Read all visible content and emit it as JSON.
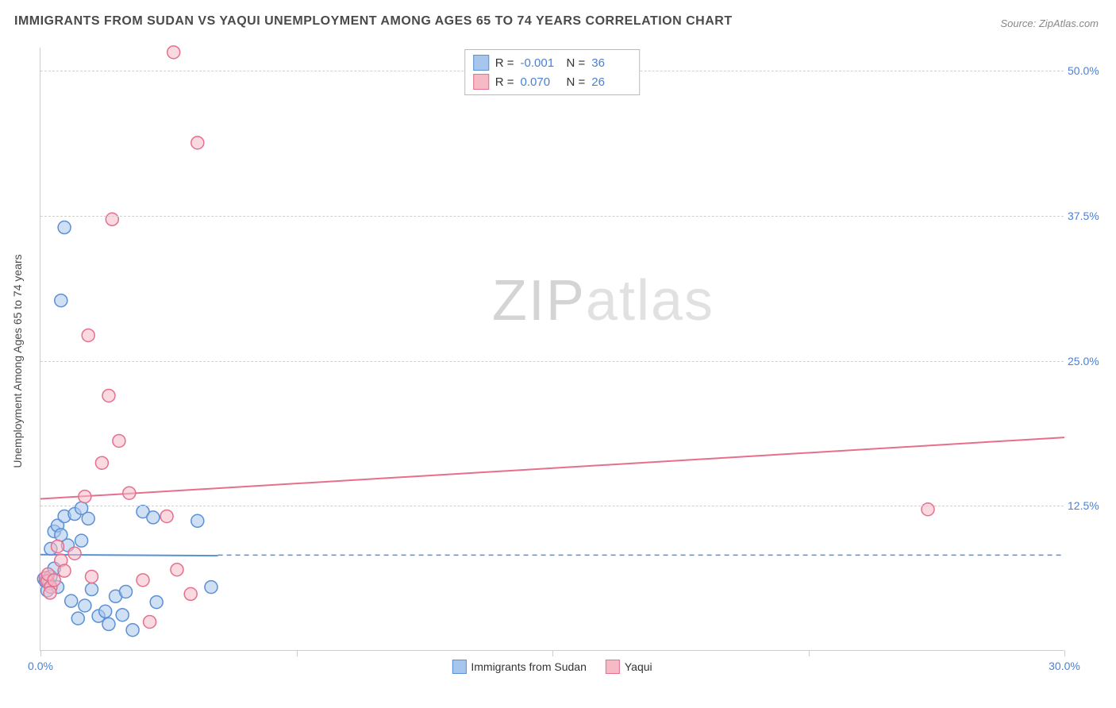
{
  "title": "IMMIGRANTS FROM SUDAN VS YAQUI UNEMPLOYMENT AMONG AGES 65 TO 74 YEARS CORRELATION CHART",
  "source_label": "Source: ZipAtlas.com",
  "y_axis_label": "Unemployment Among Ages 65 to 74 years",
  "watermark_a": "ZIP",
  "watermark_b": "atlas",
  "chart": {
    "type": "scatter",
    "xlim": [
      0,
      30
    ],
    "ylim": [
      0,
      52
    ],
    "x_ticks": [
      0,
      7.5,
      15,
      22.5,
      30
    ],
    "x_tick_labels": [
      "0.0%",
      "",
      "",
      "",
      "30.0%"
    ],
    "y_ticks": [
      12.5,
      25.0,
      37.5,
      50.0
    ],
    "y_tick_labels": [
      "12.5%",
      "25.0%",
      "37.5%",
      "50.0%"
    ],
    "grid_color": "#d0d0d0",
    "background_color": "#ffffff",
    "marker_radius": 8,
    "marker_stroke_width": 1.5,
    "line_width": 2,
    "mean_line_dash": "6,5",
    "series": [
      {
        "name": "Immigrants from Sudan",
        "fill": "#a7c6ed",
        "stroke": "#5b8fd6",
        "fill_opacity": 0.55,
        "R_label": "R =",
        "R_value": "-0.001",
        "N_label": "N =",
        "N_value": "36",
        "trend": {
          "x1": 0,
          "y1": 8.3,
          "x2": 5.2,
          "y2": 8.2
        },
        "mean_line": {
          "y": 8.25,
          "x_from": 5.2,
          "x_to": 30
        },
        "points": [
          [
            0.1,
            6.2
          ],
          [
            0.15,
            6.0
          ],
          [
            0.2,
            6.1
          ],
          [
            0.25,
            5.8
          ],
          [
            0.3,
            6.4
          ],
          [
            0.2,
            5.2
          ],
          [
            0.4,
            10.3
          ],
          [
            0.5,
            10.8
          ],
          [
            0.7,
            11.6
          ],
          [
            0.6,
            10.0
          ],
          [
            0.8,
            9.1
          ],
          [
            1.0,
            11.8
          ],
          [
            1.2,
            12.3
          ],
          [
            1.4,
            11.4
          ],
          [
            1.2,
            9.5
          ],
          [
            1.5,
            5.3
          ],
          [
            1.7,
            3.0
          ],
          [
            1.9,
            3.4
          ],
          [
            2.0,
            2.3
          ],
          [
            2.2,
            4.7
          ],
          [
            2.5,
            5.1
          ],
          [
            0.7,
            36.5
          ],
          [
            0.6,
            30.2
          ],
          [
            3.0,
            12.0
          ],
          [
            3.3,
            11.5
          ],
          [
            3.4,
            4.2
          ],
          [
            0.3,
            8.8
          ],
          [
            0.4,
            7.1
          ],
          [
            0.9,
            4.3
          ],
          [
            1.1,
            2.8
          ],
          [
            1.3,
            3.9
          ],
          [
            2.4,
            3.1
          ],
          [
            2.7,
            1.8
          ],
          [
            5.0,
            5.5
          ],
          [
            4.6,
            11.2
          ],
          [
            0.5,
            5.5
          ]
        ]
      },
      {
        "name": "Yaqui",
        "fill": "#f6b9c6",
        "stroke": "#e56f8c",
        "fill_opacity": 0.55,
        "R_label": "R =",
        "R_value": "0.070",
        "N_label": "N =",
        "N_value": "26",
        "trend": {
          "x1": 0,
          "y1": 13.1,
          "x2": 30,
          "y2": 18.4
        },
        "mean_line": null,
        "points": [
          [
            0.15,
            6.3
          ],
          [
            0.2,
            6.0
          ],
          [
            0.3,
            5.5
          ],
          [
            0.22,
            6.6
          ],
          [
            0.4,
            6.1
          ],
          [
            0.28,
            5.0
          ],
          [
            0.6,
            7.8
          ],
          [
            0.7,
            6.9
          ],
          [
            1.0,
            8.4
          ],
          [
            1.3,
            13.3
          ],
          [
            1.5,
            6.4
          ],
          [
            2.0,
            22.0
          ],
          [
            1.4,
            27.2
          ],
          [
            1.8,
            16.2
          ],
          [
            2.3,
            18.1
          ],
          [
            2.6,
            13.6
          ],
          [
            3.7,
            11.6
          ],
          [
            4.0,
            7.0
          ],
          [
            4.4,
            4.9
          ],
          [
            3.0,
            6.1
          ],
          [
            3.2,
            2.5
          ],
          [
            2.1,
            37.2
          ],
          [
            4.6,
            43.8
          ],
          [
            3.9,
            51.6
          ],
          [
            26.0,
            12.2
          ],
          [
            0.5,
            9.0
          ]
        ]
      }
    ]
  },
  "bottom_legend": [
    {
      "label": "Immigrants from Sudan",
      "fill": "#a7c6ed",
      "stroke": "#5b8fd6"
    },
    {
      "label": "Yaqui",
      "fill": "#f6b9c6",
      "stroke": "#e56f8c"
    }
  ]
}
